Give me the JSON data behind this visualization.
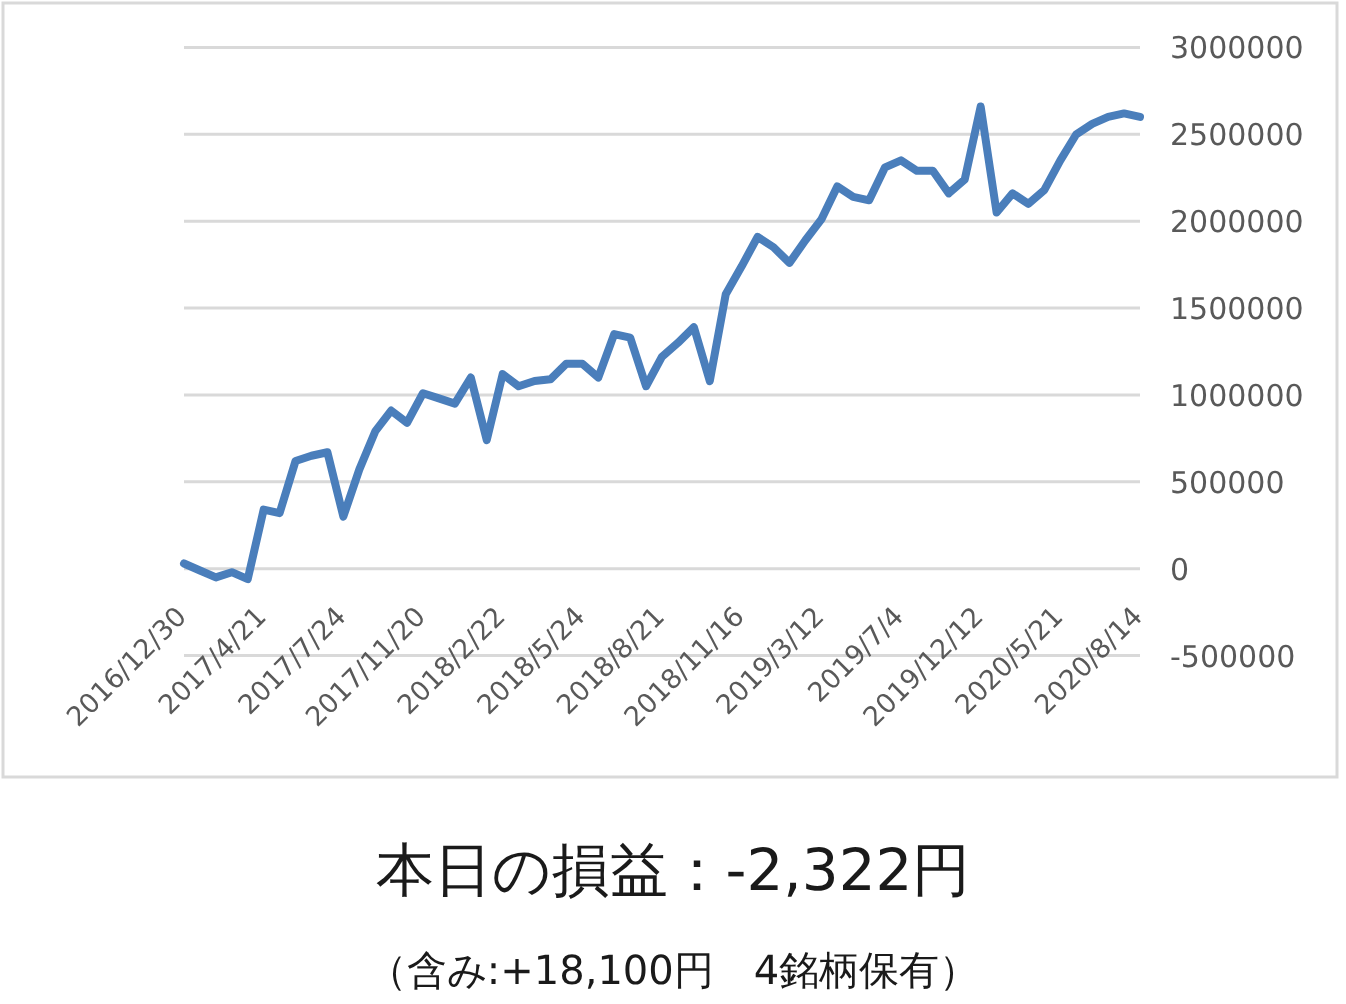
{
  "chart_data": {
    "type": "line",
    "title": "本日の損益：-2,322円",
    "subtitle": "（含み:+18,100円　4銘柄保有）",
    "categories": [
      "2016/12/30",
      null,
      null,
      null,
      null,
      "2017/4/21",
      null,
      null,
      null,
      null,
      "2017/7/24",
      null,
      null,
      null,
      null,
      "2017/11/20",
      null,
      null,
      null,
      null,
      "2018/2/22",
      null,
      null,
      null,
      null,
      "2018/5/24",
      null,
      null,
      null,
      null,
      "2018/8/21",
      null,
      null,
      null,
      null,
      "2018/11/16",
      null,
      null,
      null,
      null,
      "2019/3/12",
      null,
      null,
      null,
      null,
      "2019/7/4",
      null,
      null,
      null,
      null,
      "2019/12/12",
      null,
      null,
      null,
      null,
      "2020/5/21",
      null,
      null,
      null,
      null,
      "2020/8/14"
    ],
    "values": [
      30000,
      -10000,
      -50000,
      -20000,
      -60000,
      340000,
      320000,
      620000,
      650000,
      670000,
      300000,
      570000,
      790000,
      910000,
      840000,
      1010000,
      980000,
      950000,
      1100000,
      740000,
      1120000,
      1050000,
      1080000,
      1090000,
      1180000,
      1180000,
      1100000,
      1350000,
      1330000,
      1050000,
      1220000,
      1300000,
      1390000,
      1080000,
      1580000,
      1740000,
      1910000,
      1850000,
      1760000,
      1890000,
      2010000,
      2200000,
      2140000,
      2120000,
      2310000,
      2350000,
      2290000,
      2290000,
      2160000,
      2240000,
      2660000,
      2050000,
      2160000,
      2100000,
      2180000,
      2350000,
      2500000,
      2560000,
      2600000,
      2620000,
      2600000
    ],
    "color": "#4a7ebb",
    "ylim": [
      -500000,
      3000000
    ],
    "yticks": [
      -500000,
      0,
      500000,
      1000000,
      1500000,
      2000000,
      2500000,
      3000000
    ],
    "grid": "y"
  }
}
